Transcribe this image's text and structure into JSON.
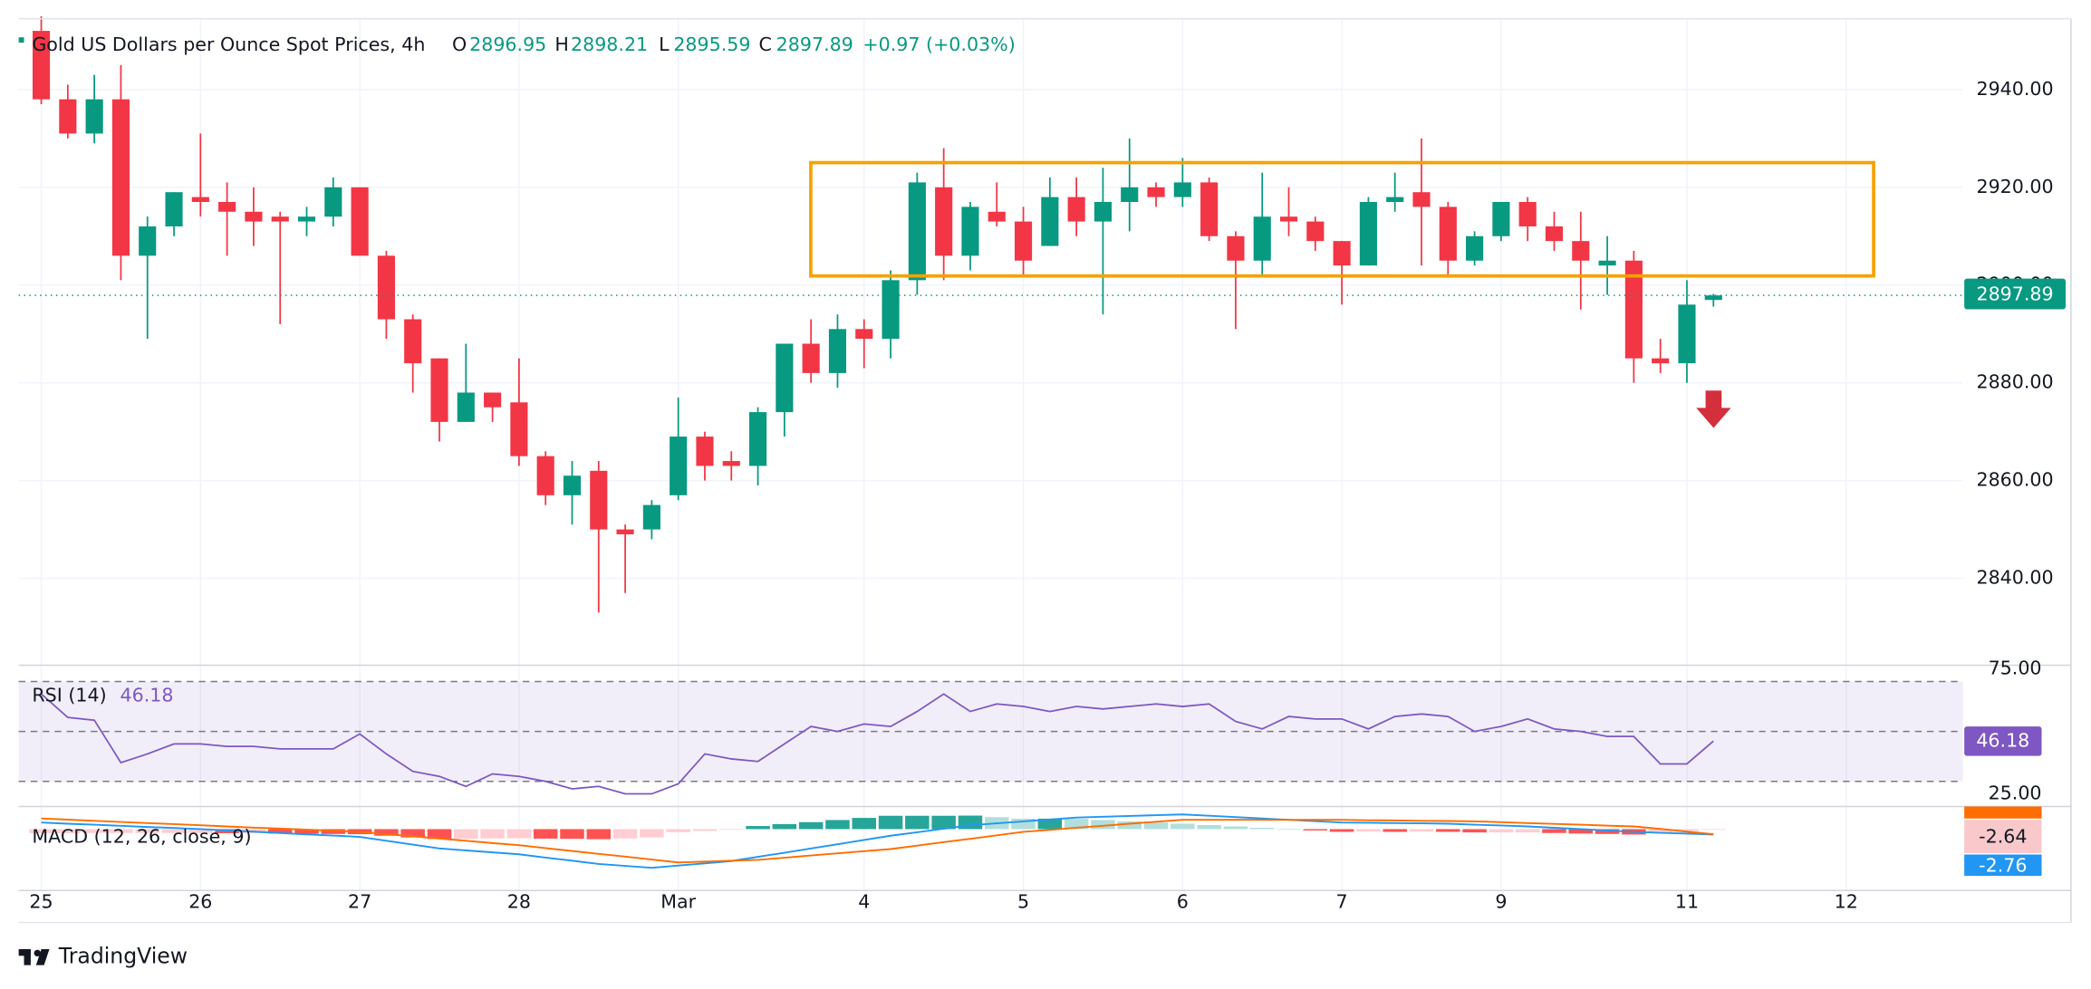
{
  "brand": "TradingView",
  "chart_data": [
    {
      "type": "candlestick",
      "title": "Gold US Dollars per Ounce Spot Prices, 4h",
      "ohlc_labels": [
        "O",
        "H",
        "L",
        "C"
      ],
      "change": "+0.97 (+0.03%)",
      "up_color": "#089981",
      "down_color": "#f23645",
      "xlim": [
        -0.85,
        72.4
      ],
      "xticks": [
        {
          "value": 0,
          "label": "25"
        },
        {
          "value": 6,
          "label": "26"
        },
        {
          "value": 12,
          "label": "27"
        },
        {
          "value": 18,
          "label": "28"
        },
        {
          "value": 24,
          "label": "Mar"
        },
        {
          "value": 31,
          "label": "4"
        },
        {
          "value": 37,
          "label": "5"
        },
        {
          "value": 43,
          "label": "6"
        },
        {
          "value": 49,
          "label": "7"
        },
        {
          "value": 55,
          "label": "9"
        },
        {
          "value": 62,
          "label": "11"
        },
        {
          "value": 68,
          "label": "12"
        }
      ],
      "ylim": [
        2822.5,
        2954.5
      ],
      "yticks": [
        {
          "value": 2840,
          "label": "2840.00"
        },
        {
          "value": 2860,
          "label": "2860.00"
        },
        {
          "value": 2880,
          "label": "2880.00"
        },
        {
          "value": 2900,
          "label": "2900.00"
        },
        {
          "value": 2920,
          "label": "2920.00"
        },
        {
          "value": 2940,
          "label": "2940.00"
        }
      ],
      "grid": true,
      "open": [
        2952,
        2938,
        2931,
        2938,
        2906,
        2912,
        2918,
        2917,
        2915,
        2914,
        2913,
        2914,
        2920,
        2906,
        2893,
        2885,
        2872,
        2878,
        2876,
        2865,
        2857,
        2862,
        2850,
        2850,
        2857,
        2869,
        2864,
        2863,
        2874,
        2888,
        2882,
        2891,
        2889,
        2901,
        2920,
        2906,
        2915,
        2913,
        2908,
        2918,
        2913,
        2917,
        2920,
        2918,
        2921,
        2910,
        2905,
        2914,
        2913,
        2909,
        2904,
        2917,
        2919,
        2916,
        2905,
        2910,
        2917,
        2912,
        2909,
        2904,
        2905,
        2885,
        2884,
        2896.95
      ],
      "high": [
        2955,
        2941,
        2943,
        2945,
        2914,
        2919,
        2931,
        2921,
        2920,
        2915,
        2916,
        2922,
        2920,
        2907,
        2894,
        2885,
        2888,
        2878,
        2885,
        2866,
        2864,
        2864,
        2851,
        2856,
        2877,
        2870,
        2866,
        2875,
        2888,
        2893,
        2894,
        2893,
        2903,
        2923,
        2928,
        2917,
        2921,
        2916,
        2922,
        2922,
        2924,
        2930,
        2921,
        2926,
        2922,
        2911,
        2923,
        2920,
        2914,
        2909,
        2918,
        2923,
        2930,
        2917,
        2911,
        2917,
        2918,
        2915,
        2915,
        2910,
        2907,
        2889,
        2901,
        2898.21
      ],
      "low": [
        2937,
        2930,
        2929,
        2901,
        2889,
        2910,
        2914,
        2906,
        2908,
        2892,
        2910,
        2912,
        2906,
        2889,
        2878,
        2868,
        2872,
        2872,
        2863,
        2855,
        2851,
        2833,
        2837,
        2848,
        2856,
        2860,
        2860,
        2859,
        2869,
        2880,
        2879,
        2883,
        2885,
        2898,
        2901,
        2903,
        2912,
        2902,
        2908,
        2910,
        2894,
        2911,
        2916,
        2916,
        2909,
        2891,
        2902,
        2910,
        2907,
        2896,
        2904,
        2915,
        2904,
        2902,
        2904,
        2909,
        2909,
        2907,
        2895,
        2898,
        2880,
        2882,
        2880,
        2895.59
      ],
      "close": [
        2938,
        2931,
        2938,
        2906,
        2912,
        2919,
        2917,
        2915,
        2913,
        2913,
        2914,
        2920,
        2906,
        2893,
        2884,
        2872,
        2878,
        2875,
        2865,
        2857,
        2861,
        2850,
        2849,
        2855,
        2869,
        2863,
        2863,
        2874,
        2888,
        2882,
        2891,
        2889,
        2901,
        2921,
        2906,
        2916,
        2913,
        2905,
        2918,
        2913,
        2917,
        2920,
        2918,
        2921,
        2910,
        2905,
        2914,
        2913,
        2909,
        2904,
        2917,
        2918,
        2916,
        2905,
        2910,
        2917,
        2912,
        2909,
        2905,
        2905,
        2885,
        2884,
        2896,
        2897.89
      ]
    },
    {
      "type": "line",
      "name": "RSI (14)",
      "color": "#7e57c2",
      "ylim": [
        21,
        76
      ],
      "yticks": [
        {
          "value": 25,
          "label": "25.00"
        },
        {
          "value": 75,
          "label": "75.00"
        }
      ],
      "levels": [
        30,
        50,
        70
      ],
      "values": [
        65,
        55.6,
        54.5,
        37.5,
        41,
        45,
        45,
        44,
        44,
        43,
        43,
        43,
        49,
        41,
        34,
        32,
        28,
        33,
        32,
        30,
        27,
        28,
        25,
        25,
        29,
        41,
        39,
        38,
        45,
        52,
        50,
        53,
        52,
        58,
        65,
        58,
        61,
        60,
        58,
        60,
        59,
        60,
        61,
        60,
        61,
        54,
        51,
        56,
        55,
        55,
        51,
        56,
        57,
        56,
        50,
        52,
        55,
        51,
        50,
        48,
        48,
        37,
        37,
        46.18
      ]
    },
    {
      "type": "macd",
      "name": "MACD (12, 26, close, 9)",
      "ylim": [
        -31.7,
        11
      ],
      "macd": {
        "color": "#2196f3",
        "values": [
          3.4,
          2.8,
          2.3,
          1.7,
          1.1,
          0.6,
          0.0,
          -0.7,
          -1.3,
          -2.0,
          -2.7,
          -3.3,
          -4.0,
          -6.0,
          -8.0,
          -10.0,
          -11.0,
          -12.0,
          -13.0,
          -14.7,
          -16.3,
          -18.0,
          -19.0,
          -20.0,
          -18.8,
          -17.7,
          -16.5,
          -14.3,
          -12.2,
          -10.0,
          -7.8,
          -5.6,
          -3.4,
          -1.6,
          0.2,
          2.0,
          3.0,
          4.0,
          5.0,
          6.0,
          6.4,
          6.8,
          7.2,
          7.6,
          6.9,
          6.2,
          5.5,
          4.8,
          4.1,
          3.4,
          3.3,
          3.1,
          3.0,
          2.8,
          2.3,
          1.9,
          1.4,
          0.7,
          0.0,
          -0.7,
          -1.4,
          -1.9,
          -2.3,
          -2.76
        ]
      },
      "signal": {
        "color": "#ff6d00",
        "values": [
          5.5,
          4.9,
          4.3,
          3.7,
          3.1,
          2.6,
          2.0,
          1.4,
          0.8,
          0.3,
          -0.3,
          -0.8,
          -1.4,
          -2.6,
          -3.7,
          -4.9,
          -6.0,
          -7.2,
          -8.3,
          -9.8,
          -11.3,
          -12.8,
          -14.2,
          -15.7,
          -17.2,
          -16.8,
          -16.3,
          -15.9,
          -14.8,
          -13.6,
          -12.5,
          -11.4,
          -10.3,
          -8.5,
          -6.7,
          -5.0,
          -3.2,
          -1.4,
          -0.4,
          0.7,
          1.7,
          2.8,
          3.8,
          4.8,
          4.8,
          4.8,
          4.8,
          4.8,
          4.8,
          4.8,
          4.6,
          4.5,
          4.3,
          4.2,
          4.0,
          3.6,
          3.1,
          2.7,
          2.3,
          1.8,
          1.4,
          0.1,
          -1.3,
          -2.64
        ]
      },
      "histogram": {
        "colors": [
          "#26a69a",
          "#b2dfdb",
          "#ffcdd2",
          "#ff5252"
        ],
        "values": [
          -2.1,
          -2.1,
          -2.0,
          -2.0,
          -2.0,
          -2.0,
          -2.0,
          -2.1,
          -2.1,
          -2.3,
          -2.4,
          -2.5,
          -2.6,
          -3.4,
          -4.3,
          -5.1,
          -5.0,
          -4.8,
          -4.7,
          -4.9,
          -5.0,
          -5.2,
          -4.8,
          -4.3,
          -1.6,
          -0.9,
          -0.2,
          1.6,
          2.6,
          3.6,
          4.7,
          5.8,
          6.9,
          6.9,
          6.9,
          7.0,
          6.2,
          5.4,
          5.4,
          5.3,
          4.7,
          4.0,
          3.4,
          2.8,
          2.1,
          1.4,
          0.7,
          0.0,
          -0.7,
          -1.4,
          -1.3,
          -1.4,
          -1.3,
          -1.4,
          -1.7,
          -1.7,
          -1.7,
          -2.0,
          -2.3,
          -2.5,
          -2.8,
          -2.0,
          -1.0,
          -0.12
        ]
      }
    }
  ]
}
